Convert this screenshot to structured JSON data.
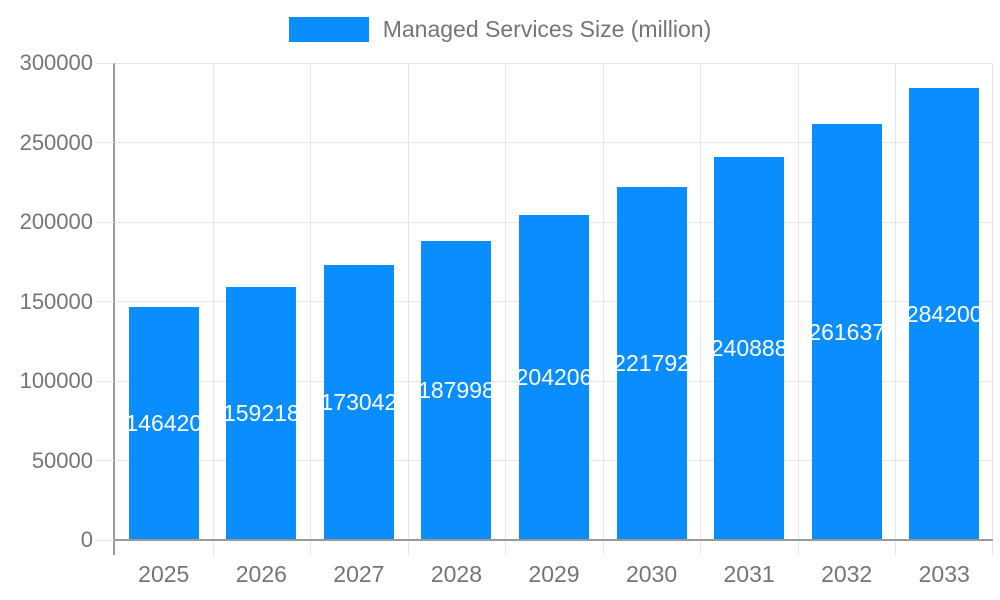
{
  "chart_data": {
    "type": "bar",
    "title": "",
    "legend": "Managed Services Size (million)",
    "legend_position": "top-center",
    "categories": [
      "2025",
      "2026",
      "2027",
      "2028",
      "2029",
      "2030",
      "2031",
      "2032",
      "2033"
    ],
    "values": [
      146420,
      159218,
      173042,
      187998,
      204206,
      221792,
      240888,
      261637,
      284200
    ],
    "xlabel": "",
    "ylabel": "",
    "ylim": [
      0,
      300000
    ],
    "yticks": [
      0,
      50000,
      100000,
      150000,
      200000,
      250000,
      300000
    ],
    "grid": "both",
    "bar_value_labels_visible": true,
    "colors": {
      "bar": "#0a8eff",
      "axis": "#9a9a9a",
      "grid": "#e5e5e5",
      "tick_text": "#757575",
      "bar_label_text": "#ffffff",
      "background": "#ffffff"
    }
  }
}
